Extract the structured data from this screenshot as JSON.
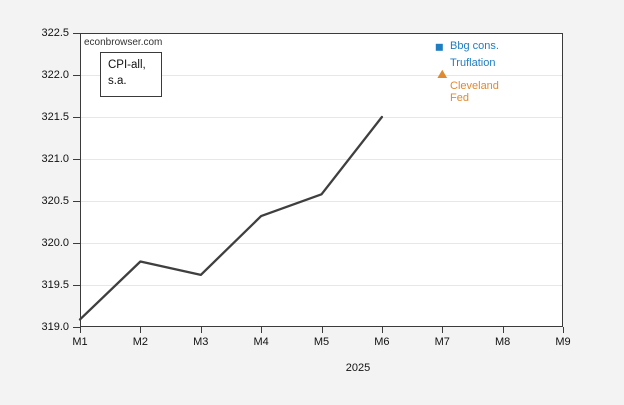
{
  "page": {
    "background_color": "#f3f3f3"
  },
  "chart_data": {
    "type": "line",
    "watermark": "econbrowser.com",
    "annotation_box": {
      "line1": "CPI-all,",
      "line2": "s.a."
    },
    "x_categories": [
      "M1",
      "M2",
      "M3",
      "M4",
      "M5",
      "M6",
      "M7",
      "M8",
      "M9"
    ],
    "x_axis_note": "2025",
    "ylim": [
      319.0,
      322.5
    ],
    "yticks": [
      {
        "value": 322.5,
        "label": "322.5"
      },
      {
        "value": 322.0,
        "label": "322.0"
      },
      {
        "value": 321.5,
        "label": "321.5"
      },
      {
        "value": 321.0,
        "label": "321.0"
      },
      {
        "value": 320.5,
        "label": "320.5"
      },
      {
        "value": 320.0,
        "label": "320.0"
      },
      {
        "value": 319.5,
        "label": "319.5"
      },
      {
        "value": 319.0,
        "label": "319.0"
      }
    ],
    "grid": "horizontal",
    "legend_position": "inside-top-right",
    "series": [
      {
        "name": "CPI-all, s.a.",
        "color": "#3f3f3f",
        "x_categories_used": [
          "M1",
          "M2",
          "M3",
          "M4",
          "M5",
          "M6"
        ],
        "values": [
          319.09,
          319.78,
          319.62,
          320.32,
          320.58,
          321.5
        ]
      }
    ],
    "forecast_markers": [
      {
        "label_lines": [
          "Bbg cons.",
          "Truflation"
        ],
        "marker": "square",
        "color": "#1f7dc0",
        "x_category": "M7",
        "value": 322.33
      },
      {
        "label_lines": [
          "Cleveland",
          "Fed"
        ],
        "marker": "triangle",
        "color": "#e0892f",
        "x_category": "M7",
        "value": 322.01
      }
    ],
    "plot_background": "#ffffff",
    "axis_color": "#3b3b3b",
    "gridline_color": "#e7e7e7",
    "text_color": "#1a1a1a"
  }
}
